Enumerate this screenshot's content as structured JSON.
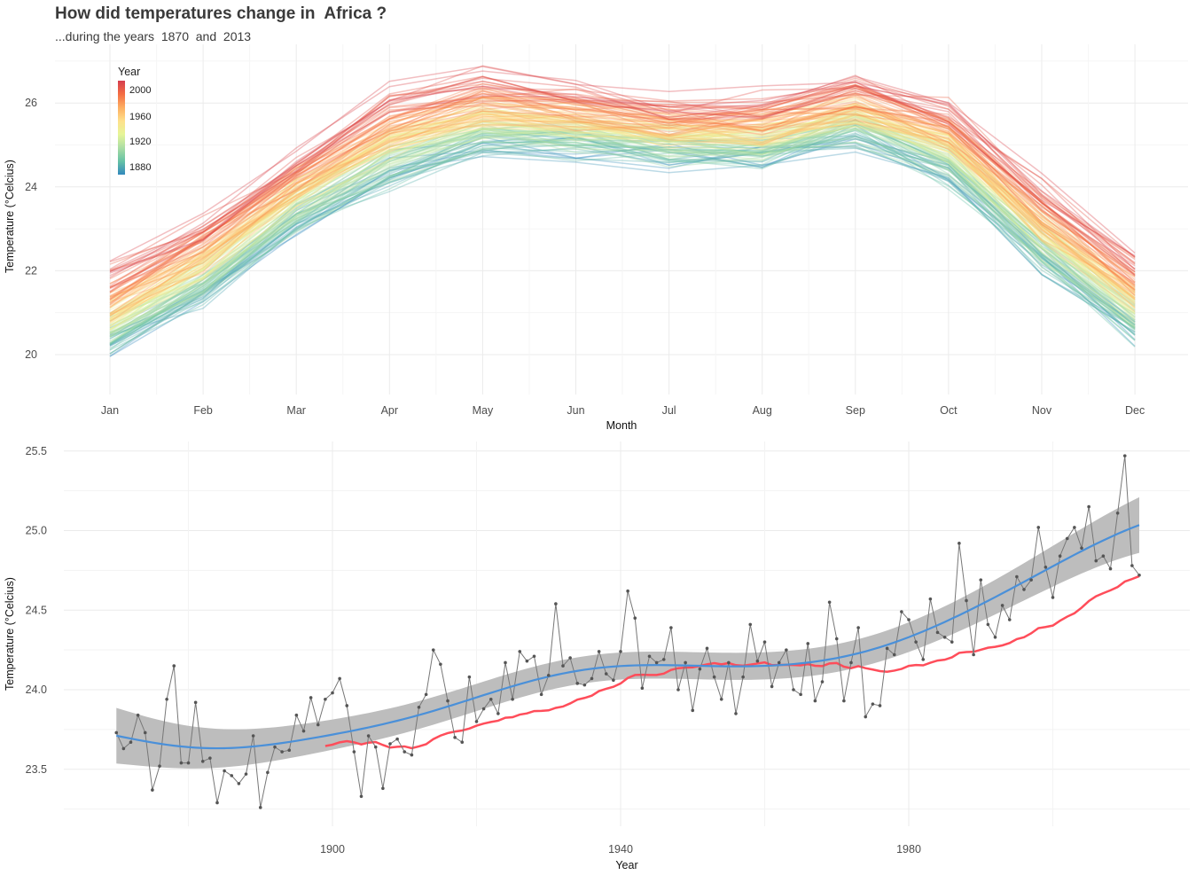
{
  "title": "How did temperatures change in  Africa ?",
  "subtitle": "...during the years  1870  and  2013",
  "chart_data": [
    {
      "type": "line",
      "xlabel": "Month",
      "ylabel": "Temperature (°Celcius)",
      "categories": [
        "Jan",
        "Feb",
        "Mar",
        "Apr",
        "May",
        "Jun",
        "Jul",
        "Aug",
        "Sep",
        "Oct",
        "Nov",
        "Dec"
      ],
      "yticks": [
        20,
        22,
        24,
        26
      ],
      "ylim": [
        19.1,
        27.3
      ],
      "grid": true,
      "legend": {
        "title": "Year",
        "labels": [
          "2000",
          "1960",
          "1920",
          "1880"
        ],
        "placement": "top-left",
        "range": [
          1870,
          2013
        ]
      },
      "color_scale": [
        "#3288bd",
        "#66c2a5",
        "#abdda4",
        "#e6f598",
        "#fee08b",
        "#fdae61",
        "#f46d43",
        "#d53e4f"
      ],
      "series_description": "one line per year 1870–2013, colored by year",
      "monthly_climatology": [
        20.2,
        21.4,
        23.1,
        24.3,
        25.0,
        24.9,
        24.7,
        24.7,
        25.2,
        24.3,
        22.2,
        20.5
      ]
    },
    {
      "type": "line",
      "xlabel": "Year",
      "ylabel": "Temperature (°Celcius)",
      "xticks": [
        1900,
        1940,
        1980
      ],
      "yticks": [
        "23.5",
        "24.0",
        "24.5",
        "25.0",
        "25.5"
      ],
      "xlim": [
        1863,
        2020
      ],
      "ylim": [
        23.13,
        25.56
      ],
      "grid": true,
      "colors": {
        "points": "#555555",
        "smooth": "#4a90d9",
        "band": "#bdbdbd",
        "moving_average": "#ff4d5a"
      },
      "x_start": 1870,
      "values": [
        23.73,
        23.63,
        23.67,
        23.84,
        23.73,
        23.37,
        23.52,
        23.94,
        24.15,
        23.54,
        23.54,
        23.92,
        23.55,
        23.57,
        23.29,
        23.49,
        23.46,
        23.41,
        23.47,
        23.71,
        23.26,
        23.48,
        23.64,
        23.61,
        23.62,
        23.84,
        23.74,
        23.95,
        23.78,
        23.94,
        23.98,
        24.07,
        23.9,
        23.61,
        23.33,
        23.71,
        23.64,
        23.38,
        23.66,
        23.69,
        23.61,
        23.59,
        23.89,
        23.97,
        24.25,
        24.16,
        23.93,
        23.7,
        23.67,
        24.08,
        23.8,
        23.88,
        23.94,
        23.85,
        24.17,
        23.94,
        24.24,
        24.18,
        24.21,
        23.97,
        24.09,
        24.54,
        24.15,
        24.2,
        24.04,
        24.03,
        24.07,
        24.24,
        24.1,
        24.06,
        24.24,
        24.62,
        24.45,
        24.01,
        24.21,
        24.17,
        24.19,
        24.39,
        24.0,
        24.17,
        23.87,
        24.13,
        24.26,
        24.08,
        23.94,
        24.17,
        23.85,
        24.08,
        24.41,
        24.18,
        24.3,
        24.02,
        24.17,
        24.25,
        24.0,
        23.97,
        24.29,
        23.93,
        24.05,
        24.55,
        24.32,
        23.93,
        24.17,
        24.39,
        23.83,
        23.91,
        23.9,
        24.26,
        24.22,
        24.49,
        24.44,
        24.3,
        24.19,
        24.57,
        24.36,
        24.33,
        24.3,
        24.92,
        24.56,
        24.22,
        24.69,
        24.41,
        24.33,
        24.53,
        24.44,
        24.71,
        24.63,
        24.69,
        25.02,
        24.77,
        24.58,
        24.84,
        24.95,
        25.02,
        24.89,
        25.15,
        24.81,
        24.84,
        24.76,
        25.11,
        25.47,
        24.78,
        24.72
      ],
      "moving_average_window": 30
    }
  ]
}
